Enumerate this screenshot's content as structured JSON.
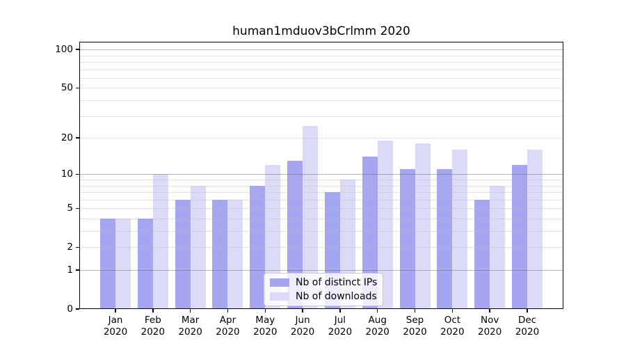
{
  "chart_data": {
    "type": "bar",
    "title": "human1mduov3bCrlmm 2020",
    "categories": [
      "Jan",
      "Feb",
      "Mar",
      "Apr",
      "May",
      "Jun",
      "Jul",
      "Aug",
      "Sep",
      "Oct",
      "Nov",
      "Dec"
    ],
    "year_label": "2020",
    "series": [
      {
        "name": "Nb of distinct IPs",
        "color": "#a5a5f0",
        "values": [
          4,
          4,
          6,
          6,
          8,
          13,
          7,
          14,
          11,
          11,
          6,
          12
        ]
      },
      {
        "name": "Nb of downloads",
        "color": "#dbdbf8",
        "values": [
          4,
          10,
          8,
          6,
          12,
          25,
          9,
          19,
          18,
          16,
          8,
          16
        ]
      }
    ],
    "yscale": "log1p",
    "ylim": [
      0,
      115
    ],
    "yticks": [
      100,
      50,
      20,
      10,
      5,
      2,
      1,
      0
    ],
    "grid": {
      "major": [
        1,
        10,
        100
      ],
      "minor": [
        2,
        3,
        4,
        5,
        6,
        7,
        8,
        9,
        20,
        30,
        40,
        50,
        60,
        70,
        80,
        90
      ]
    },
    "legend_position": "lower center",
    "xlabel": "",
    "ylabel": ""
  }
}
